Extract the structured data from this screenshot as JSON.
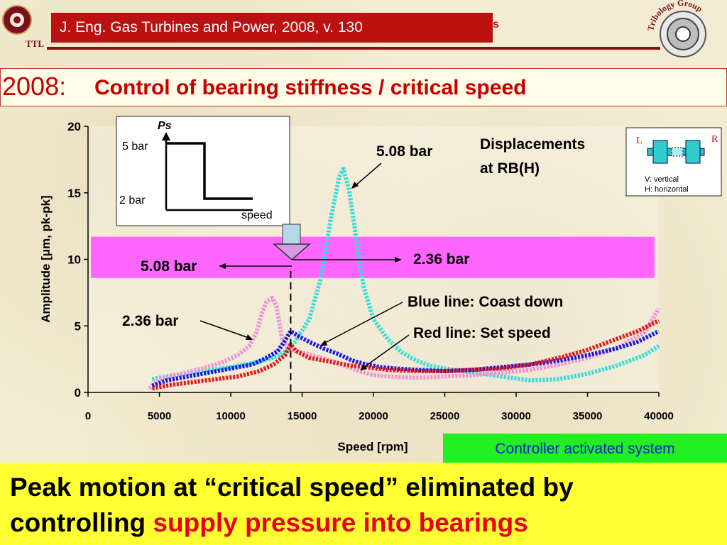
{
  "header": {
    "citation": "J. Eng. Gas Turbines and Power, 2008, v. 130",
    "citation_tail": "s",
    "right_logo_text": "Tribology Group",
    "left_logo_text": "TTL"
  },
  "title": {
    "year": "2008:",
    "text": "Control of bearing stiffness / critical speed"
  },
  "inset_pressure": {
    "ps_label": "Ps",
    "high_label": "5 bar",
    "low_label": "2 bar",
    "x_label": "speed"
  },
  "inset_bearing": {
    "left_label": "L",
    "right_label": "R",
    "legend_v": "V: vertical",
    "legend_h": "H: horizontal"
  },
  "annotations": {
    "displacements_line1": "Displacements",
    "displacements_line2": "at RB(H)",
    "peak_508": "5.08 bar",
    "left_508": "5.08 bar",
    "right_236": "2.36 bar",
    "left_236": "2.36 bar",
    "blue_line": "Blue line: Coast down",
    "red_line": "Red line: Set speed"
  },
  "controller_label": "Controller activated system",
  "bottom": {
    "line1": "Peak motion at “critical speed” eliminated by",
    "line2_prefix": "controlling ",
    "line2_highlight": "supply pressure into bearings"
  },
  "colors": {
    "cyan": "#33dddd",
    "pink": "#f090d8",
    "blue": "#1414e6",
    "red": "#e81414",
    "band": "#ff66ff"
  },
  "chart_data": {
    "type": "line",
    "xlabel": "Speed [rpm]",
    "ylabel": "Amplitude [μm, pk-pk]",
    "xlim": [
      0,
      40000
    ],
    "ylim": [
      0,
      20
    ],
    "xticks": [
      0,
      5000,
      10000,
      15000,
      20000,
      25000,
      30000,
      35000,
      40000
    ],
    "yticks": [
      0,
      5,
      10,
      15,
      20
    ],
    "switch_speed": 14200,
    "band_range": [
      8.6,
      11.7
    ],
    "series": [
      {
        "color_key": "cyan",
        "values": [
          [
            4500,
            1.0
          ],
          [
            6000,
            1.3
          ],
          [
            8000,
            1.6
          ],
          [
            10000,
            1.9
          ],
          [
            12000,
            2.3
          ],
          [
            13500,
            2.8
          ],
          [
            14500,
            3.8
          ],
          [
            15500,
            5.5
          ],
          [
            16300,
            8.5
          ],
          [
            17000,
            13.0
          ],
          [
            17600,
            16.2
          ],
          [
            17900,
            16.8
          ],
          [
            18300,
            15.2
          ],
          [
            18800,
            11.5
          ],
          [
            19300,
            8.0
          ],
          [
            20000,
            5.5
          ],
          [
            21000,
            4.0
          ],
          [
            22000,
            3.0
          ],
          [
            23000,
            2.4
          ],
          [
            24000,
            2.0
          ],
          [
            25000,
            1.8
          ],
          [
            27000,
            1.5
          ],
          [
            29000,
            1.2
          ],
          [
            31000,
            0.9
          ],
          [
            33000,
            1.0
          ],
          [
            35000,
            1.4
          ],
          [
            37000,
            2.0
          ],
          [
            39000,
            2.8
          ],
          [
            40000,
            3.5
          ]
        ]
      },
      {
        "color_key": "pink",
        "values": [
          [
            4300,
            0.3
          ],
          [
            5000,
            1.0
          ],
          [
            6500,
            1.4
          ],
          [
            8000,
            1.8
          ],
          [
            9500,
            2.3
          ],
          [
            10500,
            2.8
          ],
          [
            11300,
            3.5
          ],
          [
            11800,
            4.5
          ],
          [
            12200,
            6.0
          ],
          [
            12500,
            6.8
          ],
          [
            12900,
            7.1
          ],
          [
            13200,
            6.5
          ],
          [
            13600,
            4.0
          ],
          [
            14000,
            3.3
          ],
          [
            15000,
            3.0
          ],
          [
            16000,
            2.7
          ],
          [
            17000,
            2.4
          ],
          [
            18000,
            2.0
          ],
          [
            19000,
            1.6
          ],
          [
            20000,
            1.3
          ],
          [
            21000,
            1.2
          ],
          [
            23000,
            1.1
          ],
          [
            25000,
            1.2
          ],
          [
            27000,
            1.3
          ],
          [
            29000,
            1.5
          ],
          [
            31000,
            1.7
          ],
          [
            33000,
            2.1
          ],
          [
            35000,
            2.6
          ],
          [
            37000,
            3.3
          ],
          [
            39000,
            4.5
          ],
          [
            40000,
            6.3
          ]
        ]
      },
      {
        "color_key": "blue",
        "values": [
          [
            4500,
            0.5
          ],
          [
            5500,
            0.9
          ],
          [
            7000,
            1.2
          ],
          [
            8500,
            1.5
          ],
          [
            10000,
            1.8
          ],
          [
            11500,
            2.1
          ],
          [
            12500,
            2.6
          ],
          [
            13300,
            3.1
          ],
          [
            13800,
            3.9
          ],
          [
            14200,
            4.6
          ],
          [
            14800,
            4.2
          ],
          [
            15500,
            3.8
          ],
          [
            16500,
            3.3
          ],
          [
            17500,
            2.9
          ],
          [
            18500,
            2.4
          ],
          [
            19500,
            2.1
          ],
          [
            20500,
            1.9
          ],
          [
            21500,
            1.8
          ],
          [
            23000,
            1.7
          ],
          [
            25000,
            1.6
          ],
          [
            27000,
            1.7
          ],
          [
            29000,
            1.9
          ],
          [
            31000,
            2.1
          ],
          [
            33000,
            2.4
          ],
          [
            35000,
            2.8
          ],
          [
            37000,
            3.3
          ],
          [
            38500,
            3.8
          ],
          [
            40000,
            4.6
          ]
        ]
      },
      {
        "color_key": "red",
        "values": [
          [
            4500,
            0.3
          ],
          [
            6000,
            0.6
          ],
          [
            7500,
            0.8
          ],
          [
            9000,
            1.0
          ],
          [
            10500,
            1.2
          ],
          [
            12000,
            1.6
          ],
          [
            13000,
            2.1
          ],
          [
            13800,
            2.8
          ],
          [
            14200,
            3.6
          ],
          [
            14600,
            3.1
          ],
          [
            15500,
            2.6
          ],
          [
            16500,
            2.4
          ],
          [
            17500,
            2.2
          ],
          [
            18500,
            2.0
          ],
          [
            19500,
            1.9
          ],
          [
            21000,
            1.7
          ],
          [
            23000,
            1.6
          ],
          [
            25000,
            1.6
          ],
          [
            27000,
            1.7
          ],
          [
            29000,
            1.8
          ],
          [
            31000,
            2.1
          ],
          [
            33000,
            2.6
          ],
          [
            35000,
            3.2
          ],
          [
            37000,
            4.0
          ],
          [
            38500,
            4.6
          ],
          [
            40000,
            5.4
          ]
        ]
      }
    ]
  }
}
